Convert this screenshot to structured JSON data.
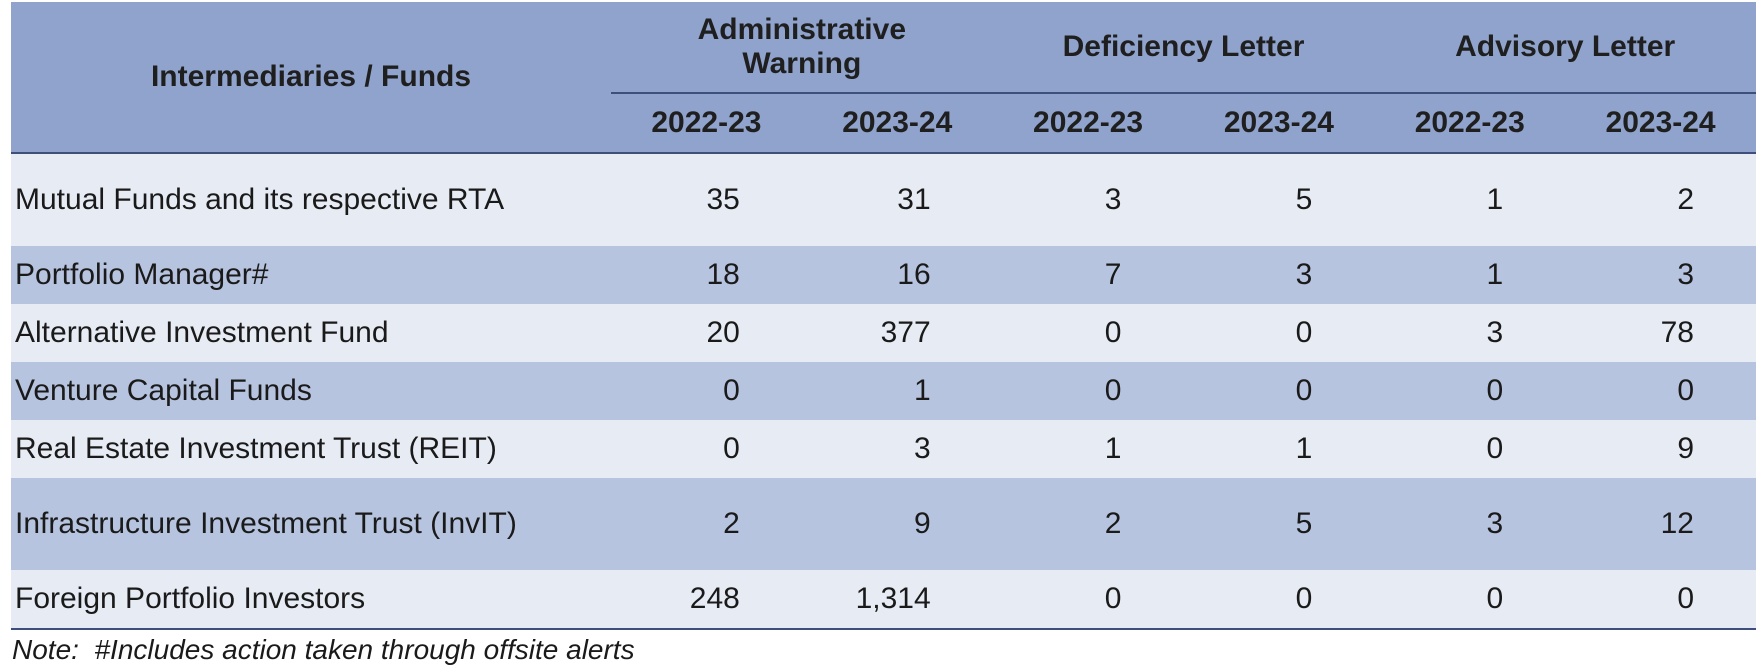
{
  "table": {
    "name_header": "Intermediaries / Funds",
    "groups": [
      {
        "label": "Administrative Warning"
      },
      {
        "label": "Deficiency Letter"
      },
      {
        "label": "Advisory Letter"
      }
    ],
    "years": [
      "2022-23",
      "2023-24",
      "2022-23",
      "2023-24",
      "2022-23",
      "2023-24"
    ],
    "rows": [
      {
        "name": "Mutual Funds and its respective RTA",
        "values": [
          "35",
          "31",
          "3",
          "5",
          "1",
          "2"
        ]
      },
      {
        "name": "Portfolio Manager#",
        "values": [
          "18",
          "16",
          "7",
          "3",
          "1",
          "3"
        ]
      },
      {
        "name": "Alternative Investment Fund",
        "values": [
          "20",
          "377",
          "0",
          "0",
          "3",
          "78"
        ]
      },
      {
        "name": "Venture Capital Funds",
        "values": [
          "0",
          "1",
          "0",
          "0",
          "0",
          "0"
        ]
      },
      {
        "name": "Real Estate Investment Trust (REIT)",
        "values": [
          "0",
          "3",
          "1",
          "1",
          "0",
          "9"
        ]
      },
      {
        "name": "Infrastructure Investment Trust (InvIT)",
        "values": [
          "2",
          "9",
          "2",
          "5",
          "3",
          "12"
        ]
      },
      {
        "name": "Foreign Portfolio Investors",
        "values": [
          "248",
          "1,314",
          "0",
          "0",
          "0",
          "0"
        ]
      }
    ]
  },
  "note": "Note:  #Includes action taken through offsite alerts",
  "colors": {
    "header_bg": "#8fa3cc",
    "row_light": "#e6ebf4",
    "row_dark": "#b7c4df",
    "rule": "#3d4f7a"
  }
}
